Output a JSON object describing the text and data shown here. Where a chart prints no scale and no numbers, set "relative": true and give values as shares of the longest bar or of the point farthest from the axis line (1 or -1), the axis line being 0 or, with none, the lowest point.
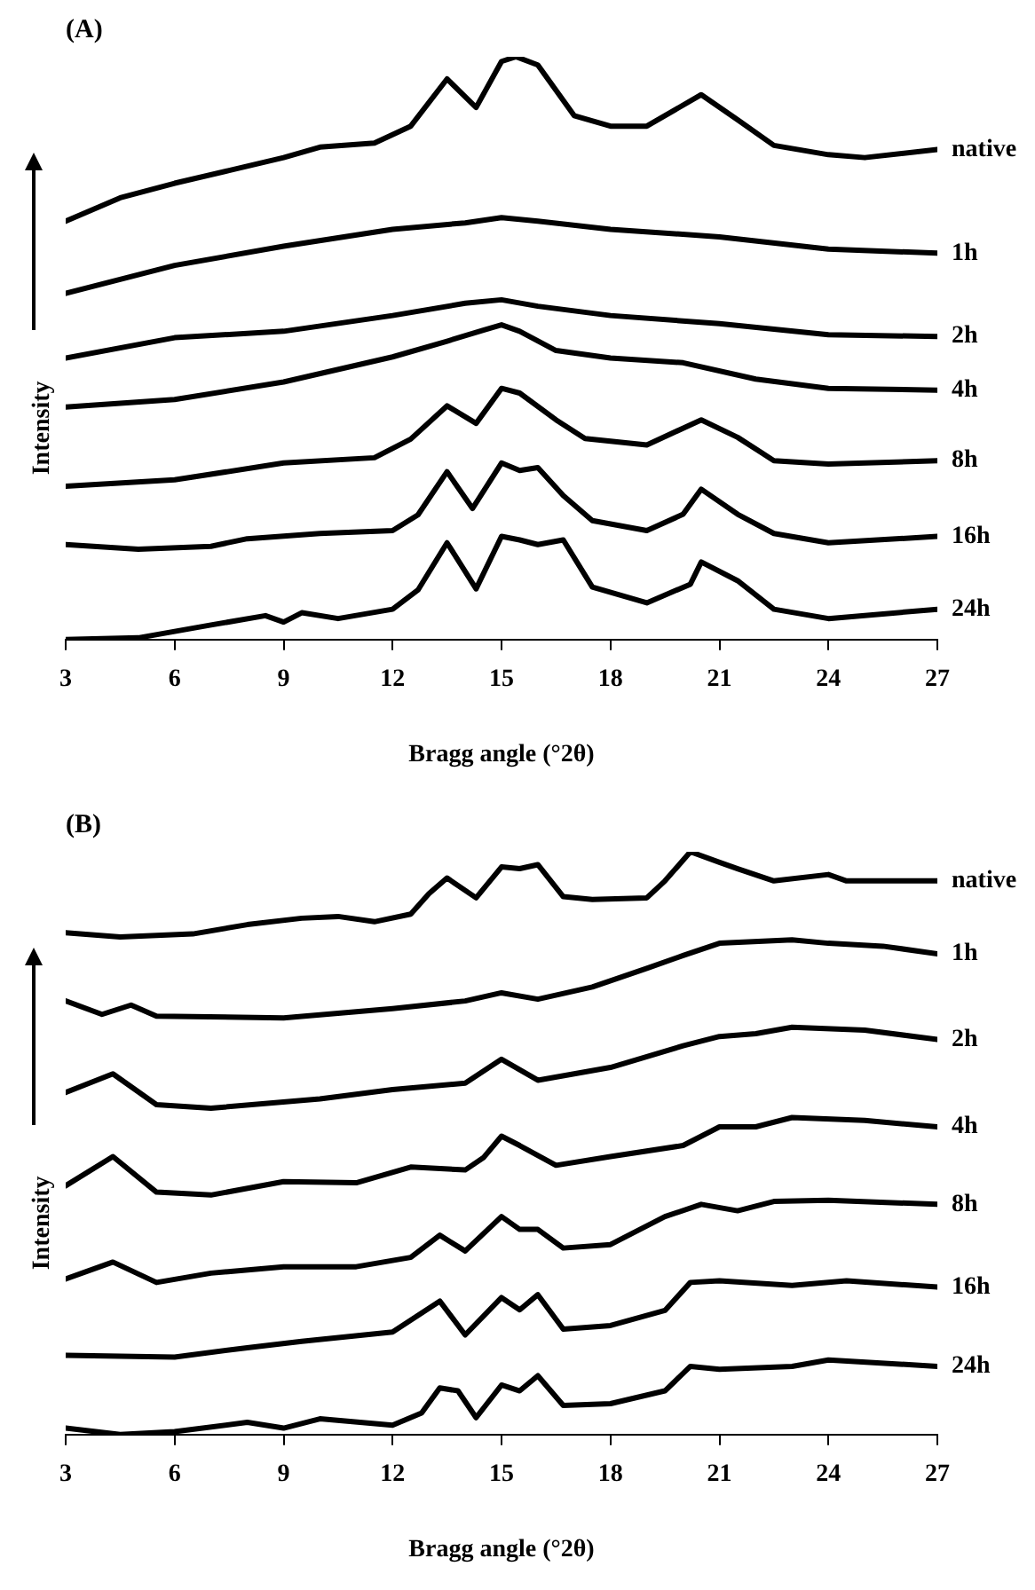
{
  "chart_data": [
    {
      "type": "line",
      "title": "(A)",
      "xlabel": "Bragg angle (°2θ)",
      "ylabel": "Intensity",
      "relative": true,
      "xlim": [
        3,
        27
      ],
      "xticks": [
        3,
        6,
        9,
        12,
        15,
        18,
        21,
        24,
        27
      ],
      "grid": false,
      "series": [
        {
          "name": "native",
          "color": "#000000",
          "x": [
            3,
            4.5,
            6,
            7.5,
            9,
            10,
            11.5,
            12.5,
            13.5,
            14.3,
            15,
            15.4,
            16,
            17,
            18,
            19,
            20.5,
            21.5,
            22.5,
            24,
            25,
            27
          ],
          "values": [
            0.718,
            0.758,
            0.783,
            0.805,
            0.827,
            0.845,
            0.852,
            0.881,
            0.962,
            0.913,
            0.992,
            1,
            0.986,
            0.899,
            0.881,
            0.881,
            0.935,
            0.892,
            0.848,
            0.832,
            0.827,
            0.841
          ]
        },
        {
          "name": "1h",
          "color": "#000000",
          "x": [
            3,
            6,
            9,
            12,
            14,
            15,
            16,
            18,
            21,
            24,
            27
          ],
          "values": [
            0.594,
            0.642,
            0.675,
            0.704,
            0.715,
            0.724,
            0.718,
            0.704,
            0.691,
            0.67,
            0.663
          ]
        },
        {
          "name": "2h",
          "color": "#000000",
          "x": [
            3,
            6,
            9,
            12,
            14,
            15,
            16,
            18,
            21,
            24,
            27
          ],
          "values": [
            0.483,
            0.518,
            0.529,
            0.556,
            0.577,
            0.583,
            0.572,
            0.556,
            0.542,
            0.523,
            0.52
          ]
        },
        {
          "name": "4h",
          "color": "#000000",
          "x": [
            3,
            6,
            9,
            12,
            13.5,
            14.5,
            15,
            15.5,
            16.5,
            18,
            20,
            22,
            24,
            27
          ],
          "values": [
            0.399,
            0.412,
            0.442,
            0.485,
            0.512,
            0.531,
            0.54,
            0.529,
            0.496,
            0.483,
            0.475,
            0.447,
            0.431,
            0.428
          ]
        },
        {
          "name": "8h",
          "color": "#000000",
          "x": [
            3,
            6,
            9,
            11.5,
            12.5,
            13.5,
            14.3,
            15,
            15.5,
            16.5,
            17.3,
            19,
            20.5,
            21.5,
            22.5,
            24,
            27
          ],
          "values": [
            0.263,
            0.274,
            0.303,
            0.312,
            0.344,
            0.401,
            0.371,
            0.431,
            0.423,
            0.377,
            0.345,
            0.334,
            0.377,
            0.347,
            0.307,
            0.301,
            0.307
          ]
        },
        {
          "name": "16h",
          "color": "#000000",
          "x": [
            3,
            5,
            7,
            8,
            10,
            12,
            12.7,
            13.5,
            14.2,
            15,
            15.5,
            16,
            16.7,
            17.5,
            19,
            20,
            20.5,
            21.5,
            22.5,
            24,
            27
          ],
          "values": [
            0.163,
            0.155,
            0.16,
            0.173,
            0.182,
            0.187,
            0.214,
            0.288,
            0.225,
            0.303,
            0.29,
            0.295,
            0.247,
            0.204,
            0.187,
            0.215,
            0.258,
            0.215,
            0.182,
            0.166,
            0.177
          ]
        },
        {
          "name": "24h",
          "color": "#000000",
          "x": [
            3,
            5,
            7,
            8.5,
            9,
            9.5,
            10.5,
            12,
            12.7,
            13.5,
            14.3,
            15,
            15.5,
            16,
            16.7,
            17.5,
            19,
            20.2,
            20.5,
            21.5,
            22.5,
            24,
            27
          ],
          "values": [
            0,
            0.003,
            0.025,
            0.041,
            0.03,
            0.046,
            0.036,
            0.052,
            0.085,
            0.166,
            0.087,
            0.177,
            0.171,
            0.163,
            0.171,
            0.09,
            0.063,
            0.095,
            0.133,
            0.101,
            0.052,
            0.036,
            0.052
          ]
        }
      ]
    },
    {
      "type": "line",
      "title": "(B)",
      "xlabel": "Bragg angle (°2θ)",
      "ylabel": "Intensity",
      "relative": true,
      "xlim": [
        3,
        27
      ],
      "xticks": [
        3,
        6,
        9,
        12,
        15,
        18,
        21,
        24,
        27
      ],
      "grid": false,
      "series": [
        {
          "name": "native",
          "color": "#000000",
          "x": [
            3,
            4.5,
            6.5,
            8,
            9.5,
            10.5,
            11.5,
            12.5,
            13,
            13.5,
            14.3,
            15,
            15.5,
            16,
            16.7,
            17.5,
            19,
            19.5,
            20.2,
            21,
            21.5,
            22.5,
            24,
            24.5,
            27
          ],
          "values": [
            0.861,
            0.854,
            0.859,
            0.875,
            0.886,
            0.889,
            0.88,
            0.893,
            0.928,
            0.955,
            0.921,
            0.974,
            0.971,
            0.978,
            0.923,
            0.918,
            0.921,
            0.95,
            1,
            0.982,
            0.971,
            0.95,
            0.961,
            0.95,
            0.95
          ]
        },
        {
          "name": "1h",
          "color": "#000000",
          "x": [
            3,
            4,
            4.8,
            5.5,
            9,
            12,
            14,
            15,
            16,
            17.5,
            19,
            20,
            21,
            23,
            24,
            25.5,
            27
          ],
          "values": [
            0.744,
            0.721,
            0.737,
            0.718,
            0.715,
            0.731,
            0.744,
            0.758,
            0.747,
            0.768,
            0.8,
            0.822,
            0.843,
            0.849,
            0.843,
            0.838,
            0.825
          ]
        },
        {
          "name": "2h",
          "color": "#000000",
          "x": [
            3,
            4.3,
            5.5,
            7,
            10,
            12,
            14,
            15,
            16,
            18,
            20,
            21,
            22,
            23,
            25,
            27
          ],
          "values": [
            0.587,
            0.619,
            0.566,
            0.56,
            0.576,
            0.592,
            0.603,
            0.644,
            0.608,
            0.63,
            0.667,
            0.683,
            0.688,
            0.699,
            0.694,
            0.678
          ]
        },
        {
          "name": "4h",
          "color": "#000000",
          "x": [
            3,
            4.3,
            5.5,
            7,
            9,
            11,
            12.5,
            14,
            14.5,
            15,
            15.5,
            16.5,
            18,
            20,
            21,
            22,
            23,
            25,
            27
          ],
          "values": [
            0.427,
            0.477,
            0.416,
            0.411,
            0.434,
            0.432,
            0.459,
            0.454,
            0.475,
            0.512,
            0.496,
            0.462,
            0.477,
            0.496,
            0.528,
            0.528,
            0.544,
            0.539,
            0.528
          ]
        },
        {
          "name": "8h",
          "color": "#000000",
          "x": [
            3,
            4.3,
            5.5,
            7,
            9,
            11,
            12.5,
            13.3,
            14,
            15,
            15.5,
            16,
            16.7,
            18,
            19.5,
            20.5,
            21.5,
            22.5,
            24,
            27
          ],
          "values": [
            0.267,
            0.296,
            0.261,
            0.277,
            0.288,
            0.288,
            0.304,
            0.342,
            0.315,
            0.374,
            0.352,
            0.352,
            0.32,
            0.326,
            0.374,
            0.395,
            0.384,
            0.4,
            0.402,
            0.395
          ]
        },
        {
          "name": "16h",
          "color": "#000000",
          "x": [
            3,
            6,
            8,
            9.5,
            12,
            13.3,
            14,
            15,
            15.5,
            16,
            16.7,
            18,
            19.5,
            20.2,
            21,
            23,
            24.5,
            27
          ],
          "values": [
            0.136,
            0.133,
            0.149,
            0.16,
            0.176,
            0.229,
            0.171,
            0.235,
            0.214,
            0.24,
            0.181,
            0.187,
            0.213,
            0.261,
            0.264,
            0.256,
            0.264,
            0.253
          ]
        },
        {
          "name": "24h",
          "color": "#000000",
          "x": [
            3,
            4.5,
            6,
            8,
            9,
            10,
            12,
            12.8,
            13.3,
            13.8,
            14.3,
            15,
            15.5,
            16,
            16.7,
            18,
            19.5,
            20.2,
            21,
            23,
            24,
            27
          ],
          "values": [
            0.011,
            0,
            0.005,
            0.021,
            0.011,
            0.027,
            0.016,
            0.037,
            0.08,
            0.075,
            0.029,
            0.085,
            0.075,
            0.101,
            0.05,
            0.053,
            0.075,
            0.117,
            0.112,
            0.117,
            0.128,
            0.117
          ]
        }
      ]
    }
  ]
}
